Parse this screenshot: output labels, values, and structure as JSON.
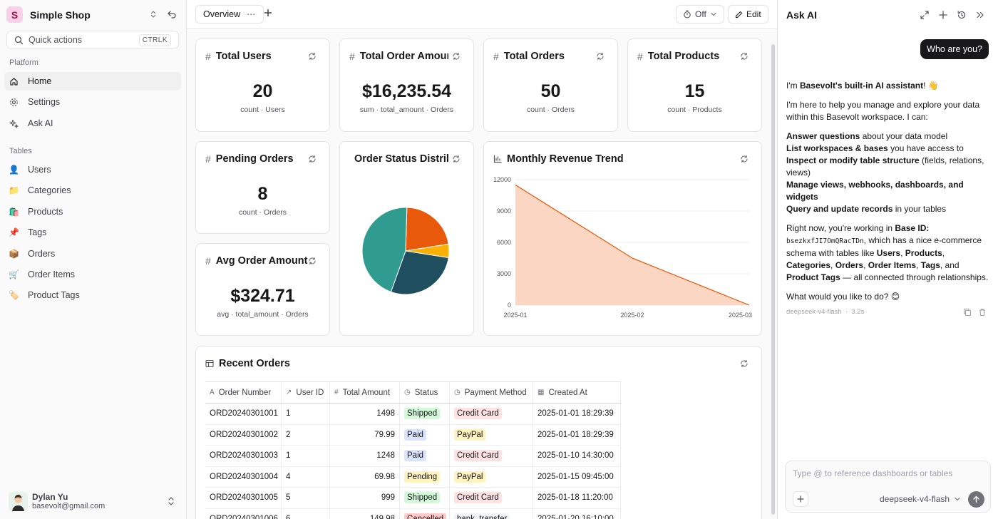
{
  "sidebar": {
    "brand_letter": "S",
    "brand_name": "Simple Shop",
    "quick_actions": "Quick actions",
    "quick_shortcut": "CTRLK",
    "platform_label": "Platform",
    "platform_items": [
      {
        "label": "Home",
        "icon": "home-icon"
      },
      {
        "label": "Settings",
        "icon": "gear-icon"
      },
      {
        "label": "Ask AI",
        "icon": "sparkle-icon"
      }
    ],
    "tables_label": "Tables",
    "table_items": [
      {
        "label": "Users",
        "emoji": "👤"
      },
      {
        "label": "Categories",
        "emoji": "📁"
      },
      {
        "label": "Products",
        "emoji": "🛍️"
      },
      {
        "label": "Tags",
        "emoji": "📌"
      },
      {
        "label": "Orders",
        "emoji": "📦"
      },
      {
        "label": "Order Items",
        "emoji": "🛒"
      },
      {
        "label": "Product Tags",
        "emoji": "🏷️"
      }
    ],
    "user": {
      "name": "Dylan Yu",
      "email": "basevolt@gmail.com"
    }
  },
  "topbar": {
    "tab_label": "Overview",
    "toggle_label": "Off",
    "edit_label": "Edit"
  },
  "cards": {
    "total_users": {
      "title": "Total Users",
      "value": "20",
      "sub": "count · Users"
    },
    "total_order_amount": {
      "title": "Total Order Amount",
      "value": "$16,235.54",
      "sub": "sum · total_amount · Orders"
    },
    "total_orders": {
      "title": "Total Orders",
      "value": "50",
      "sub": "count · Orders"
    },
    "total_products": {
      "title": "Total Products",
      "value": "15",
      "sub": "count · Products"
    },
    "pending_orders": {
      "title": "Pending Orders",
      "value": "8",
      "sub": "count · Orders"
    },
    "avg_order_amount": {
      "title": "Avg Order Amount",
      "value": "$324.71",
      "sub": "avg · total_amount · Orders"
    },
    "status_chart": {
      "title": "Order Status Distribution"
    },
    "revenue_chart": {
      "title": "Monthly Revenue Trend"
    },
    "recent_orders": {
      "title": "Recent Orders"
    }
  },
  "chart_data": [
    {
      "type": "pie",
      "title": "Order Status Distribution",
      "slices": [
        {
          "value": 22,
          "color": "#e8590c"
        },
        {
          "value": 5,
          "color": "#fab005"
        },
        {
          "value": 28,
          "color": "#1f4e5f"
        },
        {
          "value": 45,
          "color": "#2f9c8f"
        }
      ]
    },
    {
      "type": "area",
      "title": "Monthly Revenue Trend",
      "x": [
        "2025-01",
        "2025-02",
        "2025-03"
      ],
      "y": [
        11500,
        4500,
        0
      ],
      "yticks": [
        0,
        3000,
        6000,
        9000,
        12000
      ],
      "ylim": [
        0,
        12000
      ],
      "color": "#e8590c",
      "fill": "#fbd3bd",
      "grid": true
    }
  ],
  "table": {
    "columns": [
      {
        "label": "Order Number",
        "icon": "A",
        "width": 107
      },
      {
        "label": "User ID",
        "icon": "↗",
        "width": 68
      },
      {
        "label": "Total Amount",
        "icon": "#",
        "width": 98
      },
      {
        "label": "Status",
        "icon": "◷",
        "width": 70
      },
      {
        "label": "Payment Method",
        "icon": "◷",
        "width": 117
      },
      {
        "label": "Created At",
        "icon": "▦",
        "width": 123
      }
    ],
    "rows": [
      {
        "order": "ORD20240301001",
        "user": "1",
        "amount": "1498",
        "status": "Shipped",
        "payment": "Credit Card",
        "created": "2025-01-01 18:29:39"
      },
      {
        "order": "ORD20240301002",
        "user": "2",
        "amount": "79.99",
        "status": "Paid",
        "payment": "PayPal",
        "created": "2025-01-01 18:29:39"
      },
      {
        "order": "ORD20240301003",
        "user": "1",
        "amount": "1248",
        "status": "Paid",
        "payment": "Credit Card",
        "created": "2025-01-10 14:30:00"
      },
      {
        "order": "ORD20240301004",
        "user": "4",
        "amount": "69.98",
        "status": "Pending",
        "payment": "PayPal",
        "created": "2025-01-15 09:45:00"
      },
      {
        "order": "ORD20240301005",
        "user": "5",
        "amount": "999",
        "status": "Shipped",
        "payment": "Credit Card",
        "created": "2025-01-18 11:20:00"
      },
      {
        "order": "ORD20240301006",
        "user": "6",
        "amount": "149.98",
        "status": "Cancelled",
        "payment": "bank_transfer",
        "created": "2025-01-20 16:10:00"
      }
    ],
    "status_colors": {
      "Shipped": "#d3f9d8",
      "Paid": "#dbe4ff",
      "Pending": "#fff3bf",
      "Cancelled": "#ffc9c9"
    },
    "payment_colors": {
      "Credit Card": "#ffe3e3",
      "PayPal": "#fff3bf",
      "bank_transfer": "#f1f3f5"
    }
  },
  "ai": {
    "title": "Ask AI",
    "user_message": "Who are you?",
    "response": {
      "p1_a": "I'm ",
      "p1_b": "Basevolt's built-in AI assistant",
      "p1_c": "! 👋",
      "p2": "I'm here to help you manage and explore your data within this Basevolt workspace. I can:",
      "list": [
        {
          "bold": "Answer questions",
          "rest": " about your data model"
        },
        {
          "bold": "List workspaces & bases",
          "rest": " you have access to"
        },
        {
          "bold": "Inspect or modify table structure",
          "rest": " (fields, relations, views)"
        },
        {
          "bold": "Manage views, webhooks, dashboards, and widgets",
          "rest": ""
        },
        {
          "bold": "Query and update records",
          "rest": " in your tables"
        }
      ],
      "p3_a": "Right now, you're working in ",
      "p3_b": "Base ID:",
      "p3_code": "bsezkxfJI7OmQRacTDn",
      "p3_c": ", which has a nice e-commerce schema with tables like ",
      "p3_t1": "Users",
      "p3_t2": "Products",
      "p3_t3": "Categories",
      "p3_t4": "Orders",
      "p3_t5": "Order Items",
      "p3_t6": "Tags",
      "p3_t7": "Product Tags",
      "p3_d": " — all connected through relationships.",
      "p4": "What would you like to do? 😊"
    },
    "meta_model": "deepseek-v4-flash",
    "meta_time": "3.2s",
    "input_placeholder": "Type @ to reference dashboards or tables",
    "model_select": "deepseek-v4-flash"
  }
}
